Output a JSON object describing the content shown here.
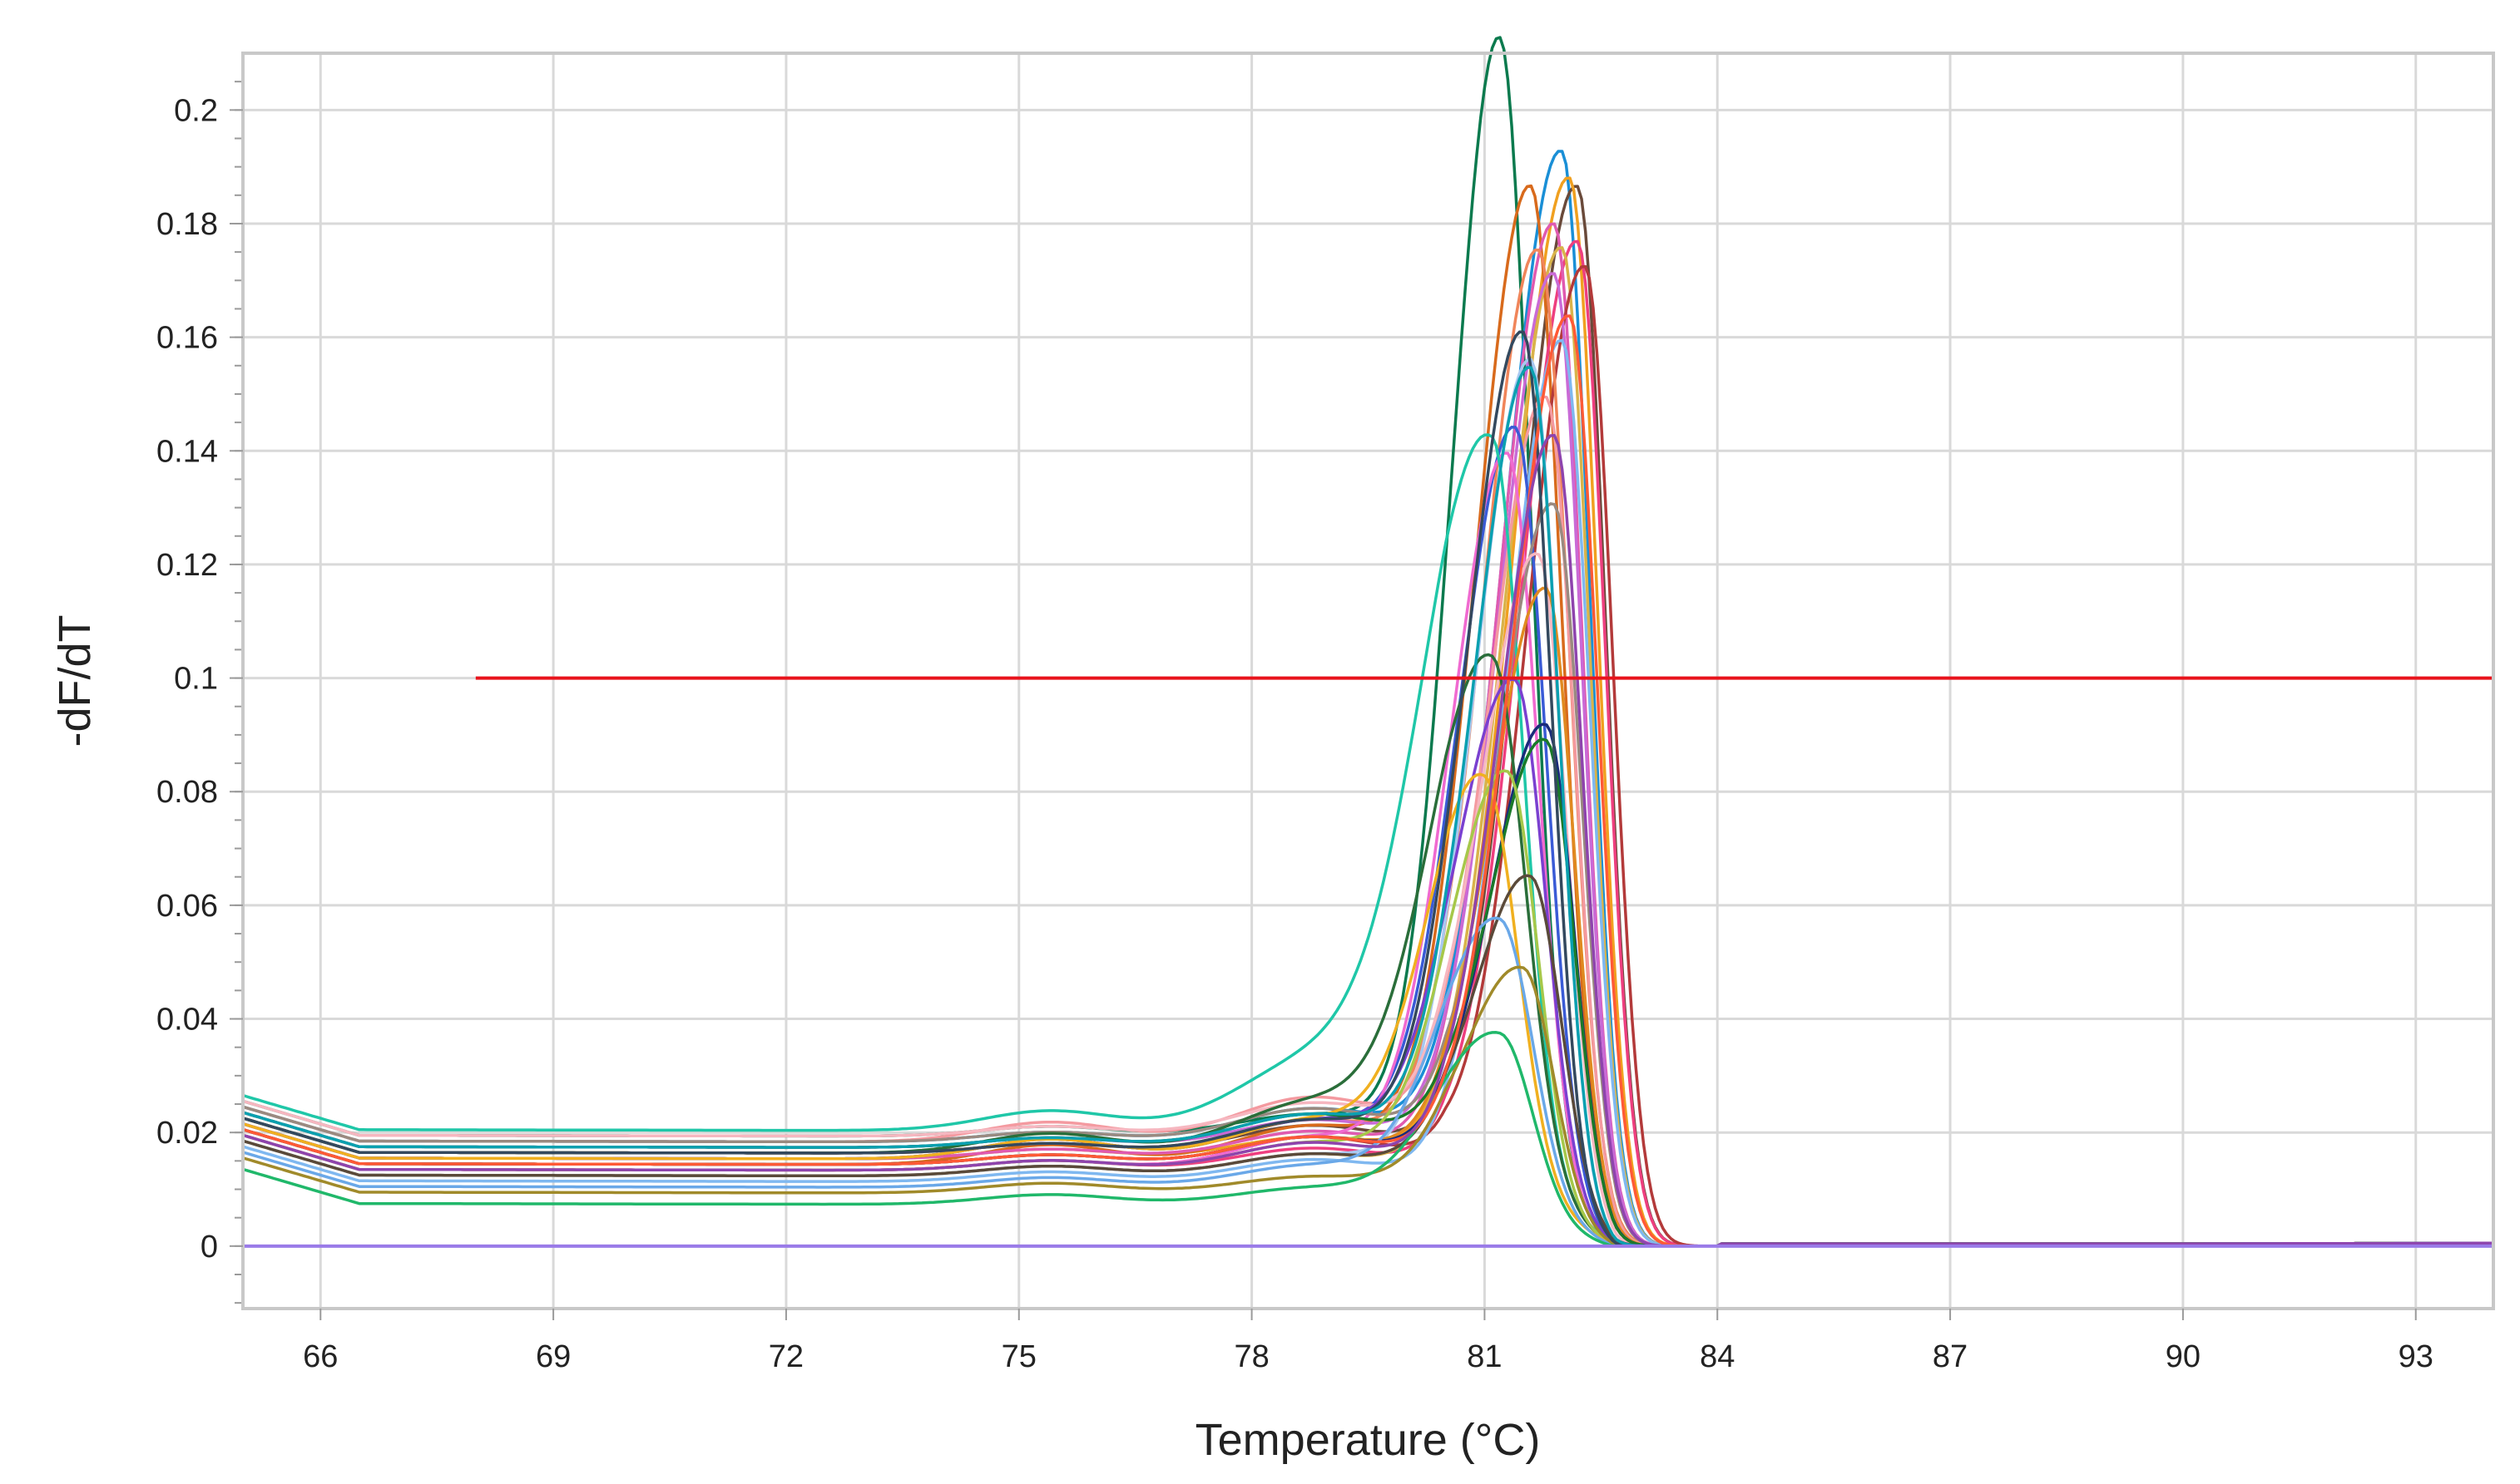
{
  "chart_data": {
    "type": "line",
    "title": "",
    "xlabel": "Temperature (°C)",
    "ylabel": "-dF/dT",
    "xlim": [
      65,
      94
    ],
    "ylim": [
      -0.011,
      0.21
    ],
    "x_ticks": [
      66,
      69,
      72,
      75,
      78,
      81,
      84,
      87,
      90,
      93
    ],
    "x_tick_labels": [
      "66",
      "69",
      "72",
      "75",
      "78",
      "81",
      "84",
      "87",
      "90",
      "93"
    ],
    "y_ticks": [
      0,
      0.02,
      0.04,
      0.06,
      0.08,
      0.1,
      0.12,
      0.14,
      0.16,
      0.18,
      0.2
    ],
    "y_tick_labels": [
      "0",
      "0.02",
      "0.04",
      "0.06",
      "0.08",
      "0.1",
      "0.12",
      "0.14",
      "0.16",
      "0.18",
      "0.2"
    ],
    "grid": true,
    "legend": "none",
    "threshold": {
      "value": 0.1,
      "x_start": 68,
      "x_end": 94,
      "color": "#e8141c"
    },
    "baseline": {
      "value": 0.0,
      "color": "#9a7be8"
    },
    "series": [
      {
        "color": "#0b7a4e",
        "base": 0.0195,
        "peak_x": 81.2,
        "peak_y": 0.1995,
        "width_left": 0.85,
        "width_right": 0.55,
        "shoulder": 0.004
      },
      {
        "color": "#1a8fd6",
        "base": 0.0185,
        "peak_x": 82.0,
        "peak_y": 0.187,
        "width_left": 1.05,
        "width_right": 0.5,
        "shoulder": 0.006
      },
      {
        "color": "#6a4a3a",
        "base": 0.0165,
        "peak_x": 82.2,
        "peak_y": 0.183,
        "width_left": 1.05,
        "width_right": 0.5,
        "shoulder": 0.005
      },
      {
        "color": "#f0a020",
        "base": 0.0155,
        "peak_x": 82.1,
        "peak_y": 0.184,
        "width_left": 1.05,
        "width_right": 0.5,
        "shoulder": 0.004
      },
      {
        "color": "#d86a1c",
        "base": 0.0145,
        "peak_x": 81.6,
        "peak_y": 0.1795,
        "width_left": 1.0,
        "width_right": 0.55,
        "shoulder": 0.007
      },
      {
        "color": "#ee3f7f",
        "base": 0.0135,
        "peak_x": 82.2,
        "peak_y": 0.174,
        "width_left": 1.05,
        "width_right": 0.5,
        "shoulder": 0.004
      },
      {
        "color": "#e05ab0",
        "base": 0.0155,
        "peak_x": 81.9,
        "peak_y": 0.1745,
        "width_left": 1.0,
        "width_right": 0.5,
        "shoulder": 0.005
      },
      {
        "color": "#d9b34a",
        "base": 0.0125,
        "peak_x": 82.0,
        "peak_y": 0.172,
        "width_left": 1.05,
        "width_right": 0.5,
        "shoulder": 0.004
      },
      {
        "color": "#b33a3a",
        "base": 0.0145,
        "peak_x": 82.3,
        "peak_y": 0.17,
        "width_left": 1.05,
        "width_right": 0.5,
        "shoulder": 0.005
      },
      {
        "color": "#f0855a",
        "base": 0.0165,
        "peak_x": 81.7,
        "peak_y": 0.168,
        "width_left": 1.0,
        "width_right": 0.55,
        "shoulder": 0.006
      },
      {
        "color": "#c96ad6",
        "base": 0.0175,
        "peak_x": 81.9,
        "peak_y": 0.165,
        "width_left": 1.0,
        "width_right": 0.5,
        "shoulder": 0.005
      },
      {
        "color": "#7fb8f0",
        "base": 0.0115,
        "peak_x": 82.0,
        "peak_y": 0.156,
        "width_left": 1.0,
        "width_right": 0.5,
        "shoulder": 0.004
      },
      {
        "color": "#a8c8f0",
        "base": 0.0125,
        "peak_x": 81.6,
        "peak_y": 0.15,
        "width_left": 1.0,
        "width_right": 0.5,
        "shoulder": 0.004
      },
      {
        "color": "#f49aa0",
        "base": 0.0185,
        "peak_x": 81.8,
        "peak_y": 0.142,
        "width_left": 1.0,
        "width_right": 0.5,
        "shoulder": 0.008
      },
      {
        "color": "#3a5bd6",
        "base": 0.0155,
        "peak_x": 81.4,
        "peak_y": 0.135,
        "width_left": 1.0,
        "width_right": 0.55,
        "shoulder": 0.007
      },
      {
        "color": "#f06ad0",
        "base": 0.0135,
        "peak_x": 81.3,
        "peak_y": 0.131,
        "width_left": 1.0,
        "width_right": 0.55,
        "shoulder": 0.006
      },
      {
        "color": "#1fc7a8",
        "base": 0.0205,
        "peak_x": 81.1,
        "peak_y": 0.127,
        "width_left": 1.25,
        "width_right": 0.55,
        "shoulder": 0.012
      },
      {
        "color": "#9a8a80",
        "base": 0.0185,
        "peak_x": 81.9,
        "peak_y": 0.124,
        "width_left": 1.0,
        "width_right": 0.5,
        "shoulder": 0.006
      },
      {
        "color": "#f6b7c0",
        "base": 0.0195,
        "peak_x": 81.7,
        "peak_y": 0.113,
        "width_left": 1.0,
        "width_right": 0.5,
        "shoulder": 0.006
      },
      {
        "color": "#e08a20",
        "base": 0.0145,
        "peak_x": 81.8,
        "peak_y": 0.11,
        "width_left": 1.0,
        "width_right": 0.5,
        "shoulder": 0.005
      },
      {
        "color": "#2a6e3a",
        "base": 0.0165,
        "peak_x": 81.1,
        "peak_y": 0.0915,
        "width_left": 1.1,
        "width_right": 0.6,
        "shoulder": 0.009
      },
      {
        "color": "#7a40d0",
        "base": 0.0155,
        "peak_x": 81.4,
        "peak_y": 0.0905,
        "width_left": 1.05,
        "width_right": 0.55,
        "shoulder": 0.007
      },
      {
        "color": "#1a2c7a",
        "base": 0.0145,
        "peak_x": 81.8,
        "peak_y": 0.086,
        "width_left": 1.0,
        "width_right": 0.5,
        "shoulder": 0.005
      },
      {
        "color": "#1a7a2a",
        "base": 0.0175,
        "peak_x": 81.8,
        "peak_y": 0.082,
        "width_left": 1.0,
        "width_right": 0.5,
        "shoulder": 0.006
      },
      {
        "color": "#a6c84a",
        "base": 0.0135,
        "peak_x": 81.3,
        "peak_y": 0.075,
        "width_left": 1.0,
        "width_right": 0.55,
        "shoulder": 0.005
      },
      {
        "color": "#f0b020",
        "base": 0.0155,
        "peak_x": 81.0,
        "peak_y": 0.0705,
        "width_left": 1.0,
        "width_right": 0.6,
        "shoulder": 0.007
      },
      {
        "color": "#5a4a3a",
        "base": 0.0125,
        "peak_x": 81.6,
        "peak_y": 0.059,
        "width_left": 1.0,
        "width_right": 0.55,
        "shoulder": 0.004
      },
      {
        "color": "#6aa8e8",
        "base": 0.0105,
        "peak_x": 81.2,
        "peak_y": 0.0505,
        "width_left": 1.05,
        "width_right": 0.6,
        "shoulder": 0.004
      },
      {
        "color": "#a08a2a",
        "base": 0.0095,
        "peak_x": 81.5,
        "peak_y": 0.044,
        "width_left": 1.05,
        "width_right": 0.55,
        "shoulder": 0.003
      },
      {
        "color": "#20b86a",
        "base": 0.0075,
        "peak_x": 81.2,
        "peak_y": 0.0325,
        "width_left": 1.1,
        "width_right": 0.6,
        "shoulder": 0.003
      },
      {
        "color": "#34495e",
        "base": 0.0165,
        "peak_x": 81.5,
        "peak_y": 0.152,
        "width_left": 1.0,
        "width_right": 0.5,
        "shoulder": 0.006
      },
      {
        "color": "#ff5a36",
        "base": 0.0145,
        "peak_x": 82.1,
        "peak_y": 0.16,
        "width_left": 1.05,
        "width_right": 0.5,
        "shoulder": 0.005
      },
      {
        "color": "#0aa0b0",
        "base": 0.0175,
        "peak_x": 81.6,
        "peak_y": 0.146,
        "width_left": 1.0,
        "width_right": 0.5,
        "shoulder": 0.006
      },
      {
        "color": "#8e44ad",
        "base": 0.0135,
        "peak_x": 81.9,
        "peak_y": 0.138,
        "width_left": 1.0,
        "width_right": 0.5,
        "shoulder": 0.005
      }
    ]
  }
}
